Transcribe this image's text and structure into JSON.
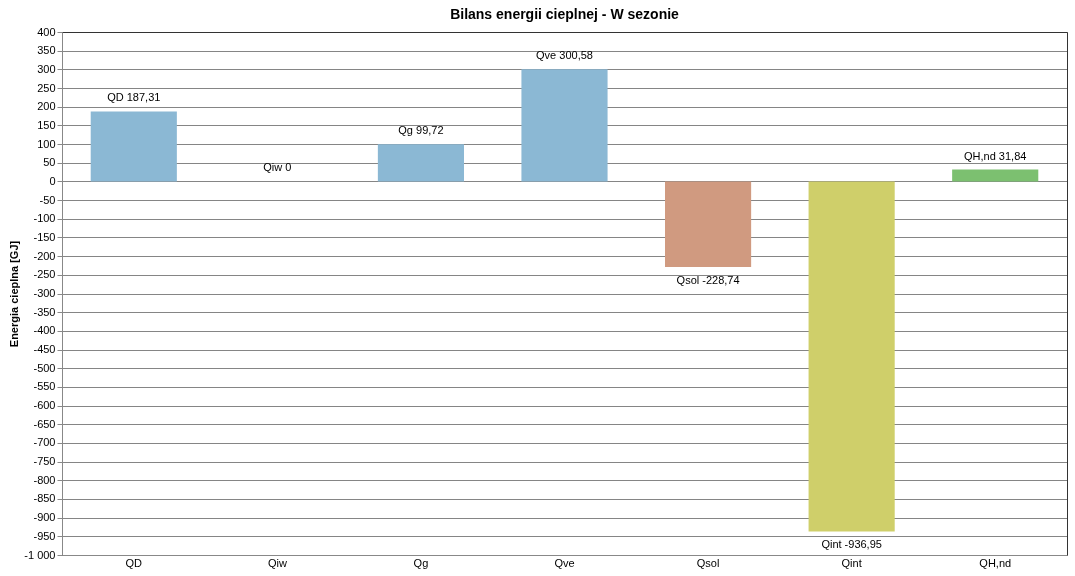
{
  "chart_data": {
    "type": "bar",
    "title": "Bilans energii cieplnej - W sezonie",
    "ylabel": "Energia cieplna [GJ]",
    "categories": [
      "QD",
      "Qiw",
      "Qg",
      "Qve",
      "Qsol",
      "Qint",
      "QH,nd"
    ],
    "values": [
      187.31,
      0,
      99.72,
      300.58,
      -228.74,
      -936.95,
      31.84
    ],
    "value_labels": [
      "QD 187,31",
      "Qiw 0",
      "Qg 99,72",
      "Qve 300,58",
      "Qsol -228,74",
      "Qint -936,95",
      "QH,nd 31,84"
    ],
    "colors": [
      "#8bb8d4",
      "#8bb8d4",
      "#8bb8d4",
      "#8bb8d4",
      "#d09a80",
      "#cfcf6a",
      "#7cc070"
    ],
    "ylim": [
      -1000,
      400
    ],
    "yticks": [
      {
        "value": -1000,
        "label": "-1 000"
      },
      -950,
      -900,
      -850,
      -800,
      -750,
      -700,
      -650,
      -600,
      -550,
      -500,
      -450,
      -400,
      -350,
      -300,
      -250,
      -200,
      -150,
      -100,
      -50,
      0,
      50,
      100,
      150,
      200,
      250,
      300,
      350,
      400
    ],
    "grid": "y",
    "legend": false
  }
}
